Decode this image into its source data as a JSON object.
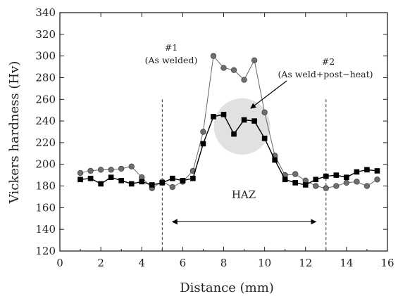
{
  "chart_data": {
    "type": "line",
    "xlabel": "Distance (mm)",
    "ylabel": "Vickers hardness (Hv)",
    "xlim": [
      0,
      16
    ],
    "ylim": [
      120,
      340
    ],
    "xticks": [
      "0",
      "2",
      "4",
      "6",
      "8",
      "10",
      "12",
      "14",
      "16"
    ],
    "yticks": [
      "120",
      "140",
      "160",
      "180",
      "200",
      "220",
      "240",
      "260",
      "280",
      "300",
      "320",
      "340"
    ],
    "grid": false,
    "series": [
      {
        "marker": "circle",
        "color": "#666666",
        "x": [
          1.0,
          1.5,
          2.0,
          2.5,
          3.0,
          3.5,
          4.0,
          4.5,
          5.0,
          5.5,
          6.0,
          6.5,
          7.0,
          7.5,
          8.0,
          8.5,
          9.0,
          9.5,
          10.0,
          10.5,
          11.0,
          11.5,
          12.0,
          12.5,
          13.0,
          13.5,
          14.0,
          14.5,
          15.0,
          15.5
        ],
        "y": [
          192,
          194,
          195,
          195,
          196,
          198,
          188,
          178,
          184,
          179,
          184,
          194,
          230,
          300,
          289,
          287,
          278,
          296,
          248,
          208,
          190,
          191,
          185,
          180,
          178,
          180,
          183,
          184,
          180,
          186
        ]
      },
      {
        "marker": "square",
        "color": "#000000",
        "x": [
          1.0,
          1.5,
          2.0,
          2.5,
          3.0,
          3.5,
          4.0,
          4.5,
          5.0,
          5.5,
          6.0,
          6.5,
          7.0,
          7.5,
          8.0,
          8.5,
          9.0,
          9.5,
          10.0,
          10.5,
          11.0,
          11.5,
          12.0,
          12.5,
          13.0,
          13.5,
          14.0,
          14.5,
          15.0,
          15.5
        ],
        "y": [
          186,
          187,
          182,
          188,
          185,
          182,
          184,
          181,
          183,
          187,
          185,
          187,
          219,
          244,
          246,
          228,
          241,
          240,
          224,
          204,
          186,
          183,
          181,
          186,
          189,
          190,
          188,
          193,
          195,
          194
        ]
      }
    ],
    "reference_lines_x": [
      5.0,
      13.0
    ],
    "haz_range": [
      5.5,
      12.5
    ],
    "annotations": {
      "label1_line1": "#1",
      "label1_line2": "(As welded)",
      "label2_line1": "#2",
      "label2_line2": "(As weld+post−heat)",
      "haz": "HAZ"
    }
  }
}
